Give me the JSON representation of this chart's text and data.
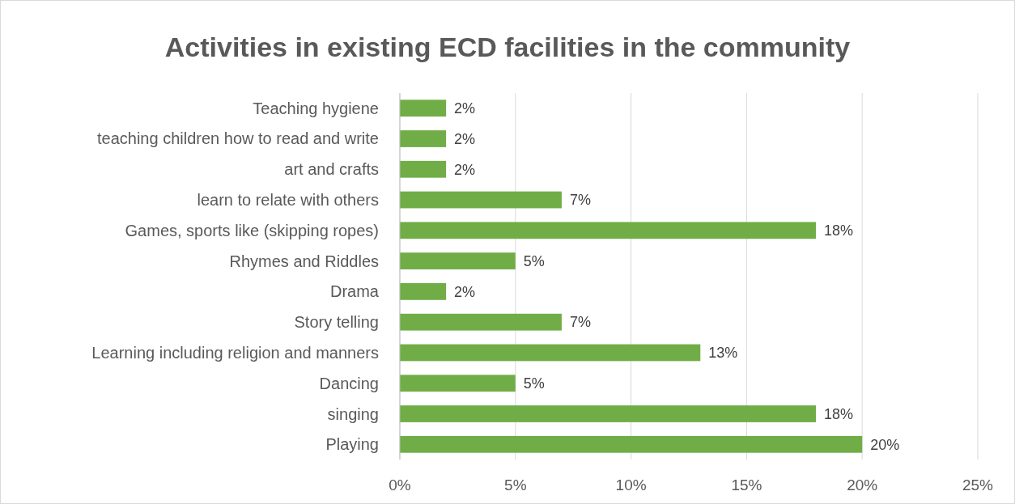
{
  "chart_data": {
    "type": "bar",
    "orientation": "horizontal",
    "title": "Activities in existing ECD facilities in the community",
    "categories": [
      "Teaching hygiene",
      "teaching children how to read and write",
      "art and crafts",
      "learn to relate with others",
      "Games, sports like (skipping ropes)",
      "Rhymes and Riddles",
      "Drama",
      "Story telling",
      "Learning including religion and manners",
      "Dancing",
      "singing",
      "Playing"
    ],
    "values": [
      2,
      2,
      2,
      7,
      18,
      5,
      2,
      7,
      13,
      5,
      18,
      20
    ],
    "value_labels": [
      "2%",
      "2%",
      "2%",
      "7%",
      "18%",
      "5%",
      "2%",
      "7%",
      "13%",
      "5%",
      "18%",
      "20%"
    ],
    "color": "#70ad47",
    "xlim": [
      0,
      25
    ],
    "xticks": [
      {
        "value": 0,
        "label": "0%"
      },
      {
        "value": 5,
        "label": "5%"
      },
      {
        "value": 10,
        "label": "10%"
      },
      {
        "value": 15,
        "label": "15%"
      },
      {
        "value": 20,
        "label": "20%"
      },
      {
        "value": 25,
        "label": "25%"
      }
    ],
    "grid": "x"
  }
}
